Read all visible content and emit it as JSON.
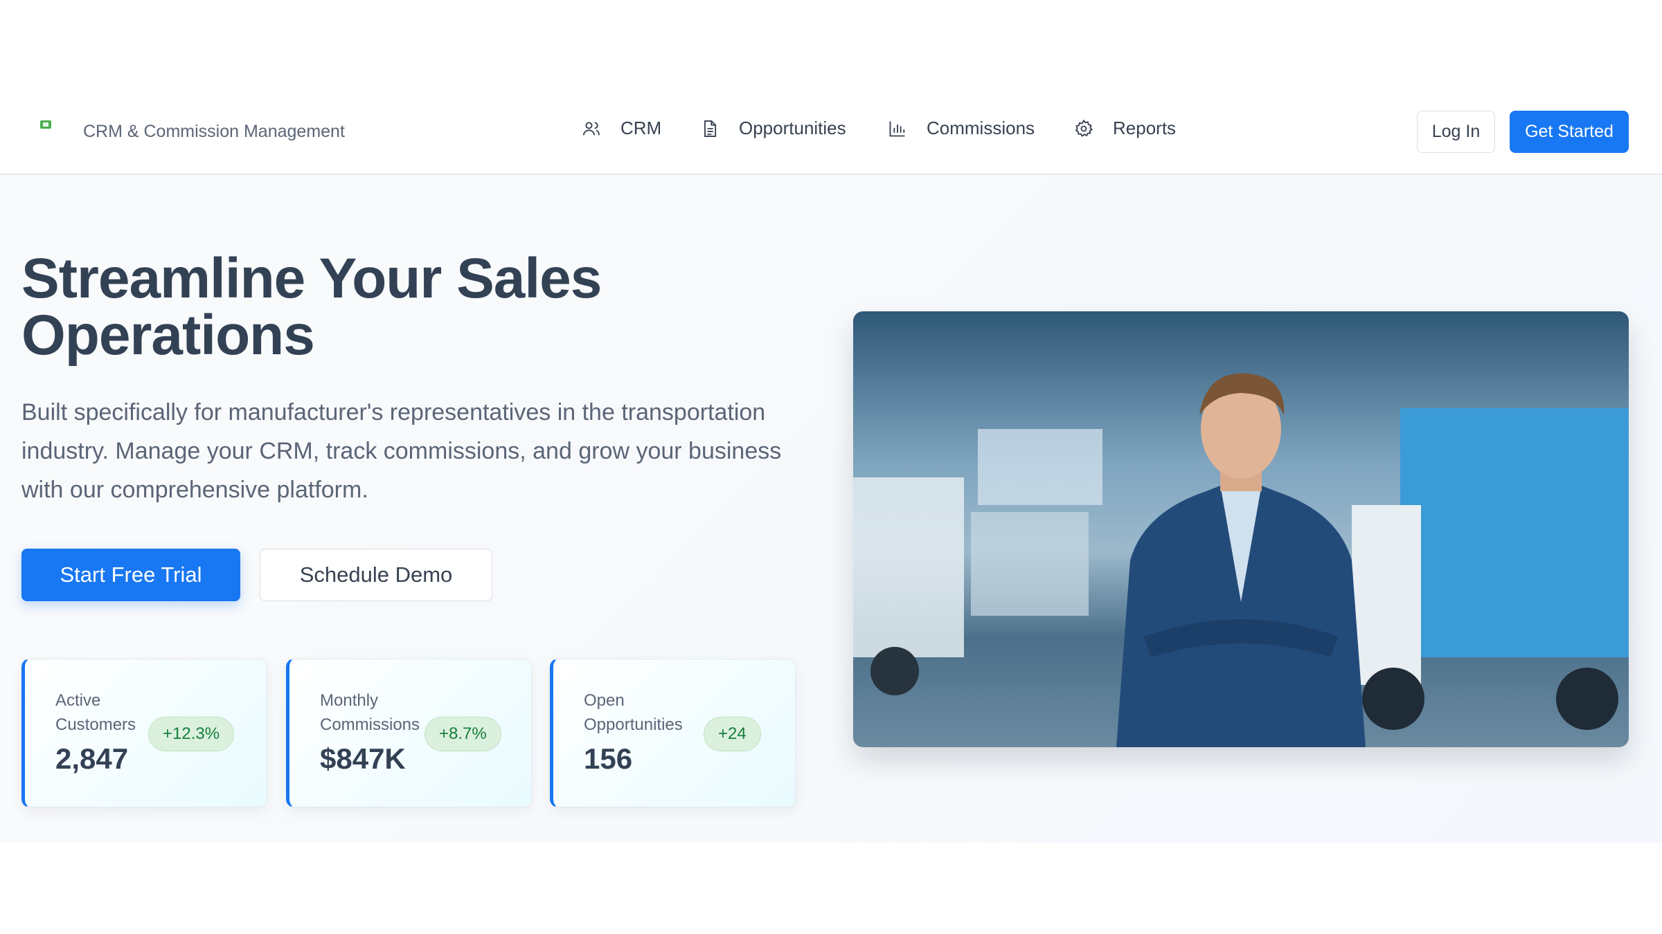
{
  "header": {
    "brand": "CRM & Commission Management",
    "logo_icon": "truck-logo-icon",
    "nav": [
      {
        "label": "CRM",
        "icon": "users-icon"
      },
      {
        "label": "Opportunities",
        "icon": "document-icon"
      },
      {
        "label": "Commissions",
        "icon": "bar-chart-icon"
      },
      {
        "label": "Reports",
        "icon": "gear-icon"
      }
    ],
    "login": "Log In",
    "get_started": "Get Started"
  },
  "hero": {
    "title": "Streamline Your Sales Operations",
    "description": "Built specifically for manufacturer's representatives in the transportation industry. Manage your CRM, track commissions, and grow your business with our comprehensive platform.",
    "primary_cta": "Start Free Trial",
    "secondary_cta": "Schedule Demo"
  },
  "stats": [
    {
      "label": "Active Customers",
      "value": "2,847",
      "change": "+12.3%"
    },
    {
      "label": "Monthly Commissions",
      "value": "$847K",
      "change": "+8.7%"
    },
    {
      "label": "Open Opportunities",
      "value": "156",
      "change": "+24"
    }
  ],
  "colors": {
    "accent": "#1877f2",
    "positive": "#15803d",
    "heading": "#334155"
  }
}
